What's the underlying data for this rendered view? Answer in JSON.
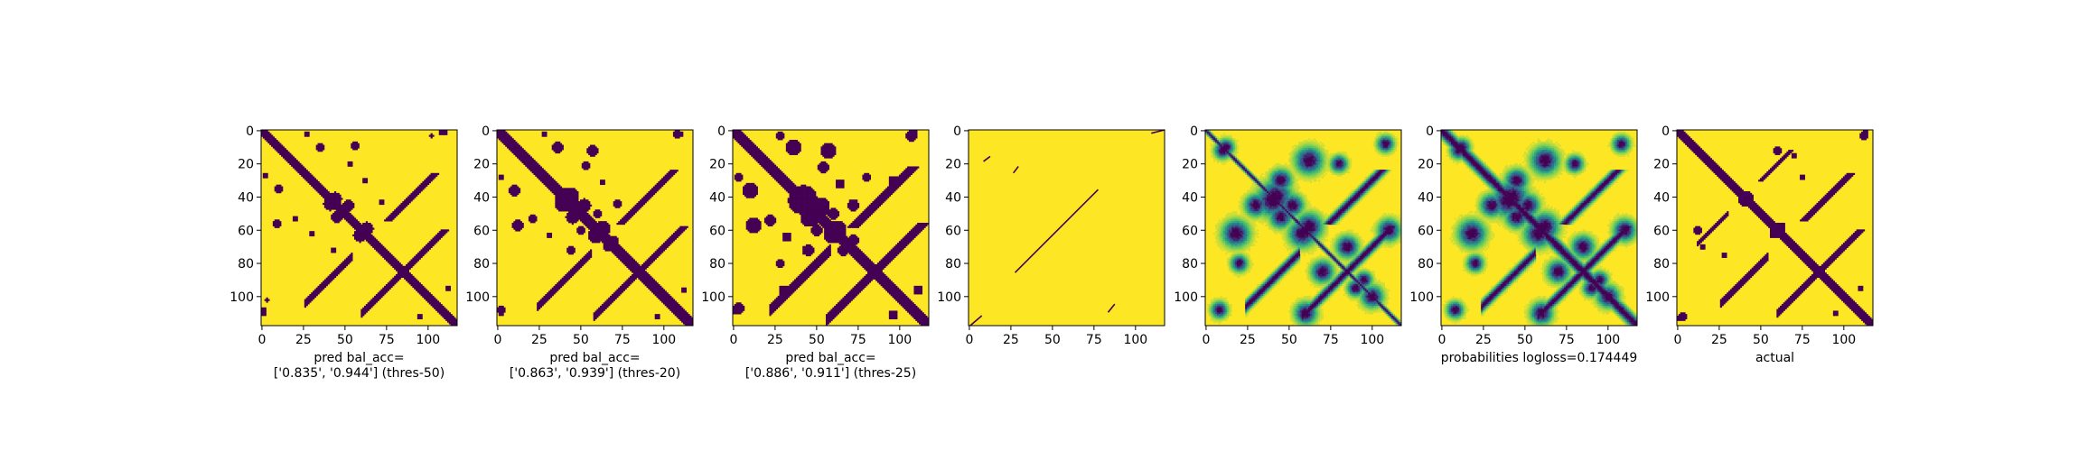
{
  "colors": {
    "background": "#fde725",
    "contact": "#440154",
    "mid_teal": "#21918c",
    "mid_green": "#5ec962",
    "mid_blue": "#3b528b"
  },
  "chart_data": [
    {
      "type": "heatmap",
      "binary": true,
      "size": 118,
      "xticks": [
        0,
        25,
        50,
        75,
        100
      ],
      "yticks": [
        0,
        20,
        40,
        60,
        80,
        100
      ],
      "xlabel_lines": [
        "pred bal_acc=",
        "['0.835', '0.944'] (thres-50)"
      ],
      "diagonals": [
        {
          "offset": 0,
          "thickness": 3.2
        },
        {
          "offset": 2,
          "thickness": 0.8
        }
      ],
      "antidiagonals": [
        {
          "sum": 130,
          "i_from": 26,
          "i_to": 54,
          "thickness": 2.2
        },
        {
          "sum": 170,
          "i_from": 60,
          "i_to": 88,
          "thickness": 2.0
        }
      ],
      "blobs": [
        {
          "i": 41,
          "j": 44,
          "r": 3.5
        },
        {
          "i": 45,
          "j": 52,
          "r": 3
        },
        {
          "i": 59,
          "j": 63,
          "r": 3.5
        },
        {
          "i": 35,
          "j": 10,
          "r": 2
        },
        {
          "i": 56,
          "j": 9,
          "r": 2
        },
        {
          "i": 43,
          "j": 72,
          "r": 1.5
        },
        {
          "i": 2,
          "j": 27,
          "r": 1.5
        },
        {
          "i": 20,
          "j": 53,
          "r": 1.5
        },
        {
          "i": 30,
          "j": 62,
          "r": 1.5
        },
        {
          "i": 1,
          "j": 110,
          "r": 1.5
        },
        {
          "i": 108,
          "j": 1,
          "r": 1.5
        },
        {
          "i": 112,
          "j": 95,
          "r": 1.5
        },
        {
          "i": 102,
          "j": 3,
          "r": 1
        }
      ]
    },
    {
      "type": "heatmap",
      "binary": true,
      "size": 118,
      "xticks": [
        0,
        25,
        50,
        75,
        100
      ],
      "yticks": [
        0,
        20,
        40,
        60,
        80,
        100
      ],
      "xlabel_lines": [
        "pred bal_acc=",
        "['0.863', '0.939'] (thres-20)"
      ],
      "diagonals": [
        {
          "offset": 0,
          "thickness": 3.8
        },
        {
          "offset": 2,
          "thickness": 1.0
        }
      ],
      "antidiagonals": [
        {
          "sum": 130,
          "i_from": 24,
          "i_to": 56,
          "thickness": 2.6
        },
        {
          "sum": 170,
          "i_from": 58,
          "i_to": 90,
          "thickness": 2.4
        }
      ],
      "blobs": [
        {
          "i": 40,
          "j": 43,
          "r": 5
        },
        {
          "i": 45,
          "j": 52,
          "r": 3.5
        },
        {
          "i": 59,
          "j": 63,
          "r": 4
        },
        {
          "i": 36,
          "j": 10,
          "r": 3
        },
        {
          "i": 57,
          "j": 12,
          "r": 3
        },
        {
          "i": 44,
          "j": 72,
          "r": 2
        },
        {
          "i": 2,
          "j": 28,
          "r": 1.5
        },
        {
          "i": 21,
          "j": 53,
          "r": 2
        },
        {
          "i": 31,
          "j": 63,
          "r": 1.5
        },
        {
          "i": 2,
          "j": 110,
          "r": 1.5
        },
        {
          "i": 108,
          "j": 2,
          "r": 2
        },
        {
          "i": 112,
          "j": 96,
          "r": 1.5
        },
        {
          "i": 66,
          "j": 70,
          "r": 2
        },
        {
          "i": 50,
          "j": 60,
          "r": 2
        }
      ]
    },
    {
      "type": "heatmap",
      "binary": true,
      "size": 118,
      "xticks": [
        0,
        25,
        50,
        75,
        100
      ],
      "yticks": [
        0,
        20,
        40,
        60,
        80,
        100
      ],
      "xlabel_lines": [
        "pred bal_acc=",
        "['0.886', '0.911'] (thres-25)"
      ],
      "diagonals": [
        {
          "offset": 0,
          "thickness": 4.6
        },
        {
          "offset": 3,
          "thickness": 1.2
        }
      ],
      "antidiagonals": [
        {
          "sum": 130,
          "i_from": 22,
          "i_to": 58,
          "thickness": 3.2
        },
        {
          "sum": 170,
          "i_from": 56,
          "i_to": 92,
          "thickness": 3.0
        }
      ],
      "blobs": [
        {
          "i": 41,
          "j": 42,
          "r": 7
        },
        {
          "i": 46,
          "j": 52,
          "r": 5
        },
        {
          "i": 60,
          "j": 62,
          "r": 5
        },
        {
          "i": 36,
          "j": 10,
          "r": 4
        },
        {
          "i": 57,
          "j": 12,
          "r": 4
        },
        {
          "i": 45,
          "j": 72,
          "r": 3
        },
        {
          "i": 3,
          "j": 28,
          "r": 2
        },
        {
          "i": 22,
          "j": 54,
          "r": 3
        },
        {
          "i": 32,
          "j": 64,
          "r": 2.5
        },
        {
          "i": 2,
          "j": 108,
          "r": 2.5
        },
        {
          "i": 107,
          "j": 3,
          "r": 3
        },
        {
          "i": 111,
          "j": 96,
          "r": 2.5
        },
        {
          "i": 66,
          "j": 72,
          "r": 3
        },
        {
          "i": 50,
          "j": 60,
          "r": 3
        },
        {
          "i": 72,
          "j": 44,
          "r": 2.5
        },
        {
          "i": 28,
          "j": 80,
          "r": 2
        },
        {
          "i": 96,
          "j": 30,
          "r": 2.5
        }
      ]
    },
    {
      "type": "heatmap",
      "binary": true,
      "size": 118,
      "xticks": [
        0,
        25,
        50,
        75,
        100
      ],
      "yticks": [
        0,
        20,
        40,
        60,
        80,
        100
      ],
      "xlabel_lines": [],
      "diagonals": [],
      "antidiagonals": [],
      "segments": [
        {
          "x1": 9,
          "y1": 19,
          "x2": 13,
          "y2": 16
        },
        {
          "x1": 27,
          "y1": 26,
          "x2": 30,
          "y2": 22
        },
        {
          "x1": 28,
          "y1": 86,
          "x2": 78,
          "y2": 36
        },
        {
          "x1": 110,
          "y1": 2,
          "x2": 118,
          "y2": 0
        },
        {
          "x1": 84,
          "y1": 110,
          "x2": 88,
          "y2": 105
        },
        {
          "x1": 1,
          "y1": 118,
          "x2": 8,
          "y2": 112
        }
      ],
      "blobs": []
    },
    {
      "type": "heatmap",
      "binary": false,
      "size": 118,
      "xticks": [
        0,
        25,
        50,
        75,
        100
      ],
      "yticks": [
        0,
        20,
        40,
        60,
        80,
        100
      ],
      "xlabel_lines": [],
      "diagonals": [
        {
          "offset": 0,
          "thickness": 1.2
        }
      ],
      "antidiagonals": [
        {
          "sum": 130,
          "i_from": 24,
          "i_to": 56,
          "thickness": 2.5
        },
        {
          "sum": 170,
          "i_from": 58,
          "i_to": 90,
          "thickness": 2.5
        }
      ],
      "blobs": [
        {
          "i": 40,
          "j": 42,
          "r": 6
        },
        {
          "i": 45,
          "j": 52,
          "r": 4
        },
        {
          "i": 58,
          "j": 62,
          "r": 5
        },
        {
          "i": 62,
          "j": 18,
          "r": 5
        },
        {
          "i": 60,
          "j": 110,
          "r": 4
        },
        {
          "i": 85,
          "j": 70,
          "r": 4
        },
        {
          "i": 30,
          "j": 45,
          "r": 4
        },
        {
          "i": 100,
          "j": 100,
          "r": 4
        },
        {
          "i": 20,
          "j": 80,
          "r": 3
        },
        {
          "i": 108,
          "j": 8,
          "r": 3
        },
        {
          "i": 90,
          "j": 95,
          "r": 3
        },
        {
          "i": 12,
          "j": 10,
          "r": 3
        }
      ]
    },
    {
      "type": "heatmap",
      "binary": false,
      "size": 118,
      "xticks": [
        0,
        25,
        50,
        75,
        100
      ],
      "yticks": [
        0,
        20,
        40,
        60,
        80,
        100
      ],
      "xlabel_lines": [
        "probabilities logloss=0.174449"
      ],
      "diagonals": [
        {
          "offset": 0,
          "thickness": 3.2
        }
      ],
      "antidiagonals": [
        {
          "sum": 130,
          "i_from": 24,
          "i_to": 56,
          "thickness": 2.5
        },
        {
          "sum": 170,
          "i_from": 58,
          "i_to": 90,
          "thickness": 2.5
        }
      ],
      "blobs": [
        {
          "i": 40,
          "j": 42,
          "r": 6
        },
        {
          "i": 45,
          "j": 52,
          "r": 4
        },
        {
          "i": 58,
          "j": 62,
          "r": 5
        },
        {
          "i": 62,
          "j": 18,
          "r": 5
        },
        {
          "i": 60,
          "j": 110,
          "r": 4
        },
        {
          "i": 85,
          "j": 70,
          "r": 4
        },
        {
          "i": 30,
          "j": 45,
          "r": 4
        },
        {
          "i": 100,
          "j": 100,
          "r": 4
        },
        {
          "i": 20,
          "j": 80,
          "r": 3
        },
        {
          "i": 108,
          "j": 8,
          "r": 3
        },
        {
          "i": 90,
          "j": 95,
          "r": 3
        },
        {
          "i": 12,
          "j": 10,
          "r": 3
        }
      ]
    },
    {
      "type": "heatmap",
      "binary": true,
      "size": 118,
      "xticks": [
        0,
        25,
        50,
        75,
        100
      ],
      "yticks": [
        0,
        20,
        40,
        60,
        80,
        100
      ],
      "xlabel_lines": [
        "actual"
      ],
      "diagonals": [
        {
          "offset": 0,
          "thickness": 3.0
        },
        {
          "offset": 2,
          "thickness": 0.8
        }
      ],
      "antidiagonals": [
        {
          "sum": 130,
          "i_from": 26,
          "i_to": 54,
          "thickness": 2.0
        },
        {
          "sum": 170,
          "i_from": 60,
          "i_to": 88,
          "thickness": 2.0
        },
        {
          "sum": 80,
          "i_from": 12,
          "i_to": 30,
          "thickness": 1.2
        }
      ],
      "blobs": [
        {
          "i": 40,
          "j": 42,
          "r": 3
        },
        {
          "i": 58,
          "j": 62,
          "r": 2.5
        },
        {
          "i": 60,
          "j": 12,
          "r": 2
        },
        {
          "i": 1,
          "j": 113,
          "r": 1.5
        },
        {
          "i": 112,
          "j": 3,
          "r": 2
        },
        {
          "i": 110,
          "j": 95,
          "r": 1.5
        },
        {
          "i": 15,
          "j": 70,
          "r": 1.5
        },
        {
          "i": 75,
          "j": 28,
          "r": 1.5
        }
      ]
    }
  ]
}
